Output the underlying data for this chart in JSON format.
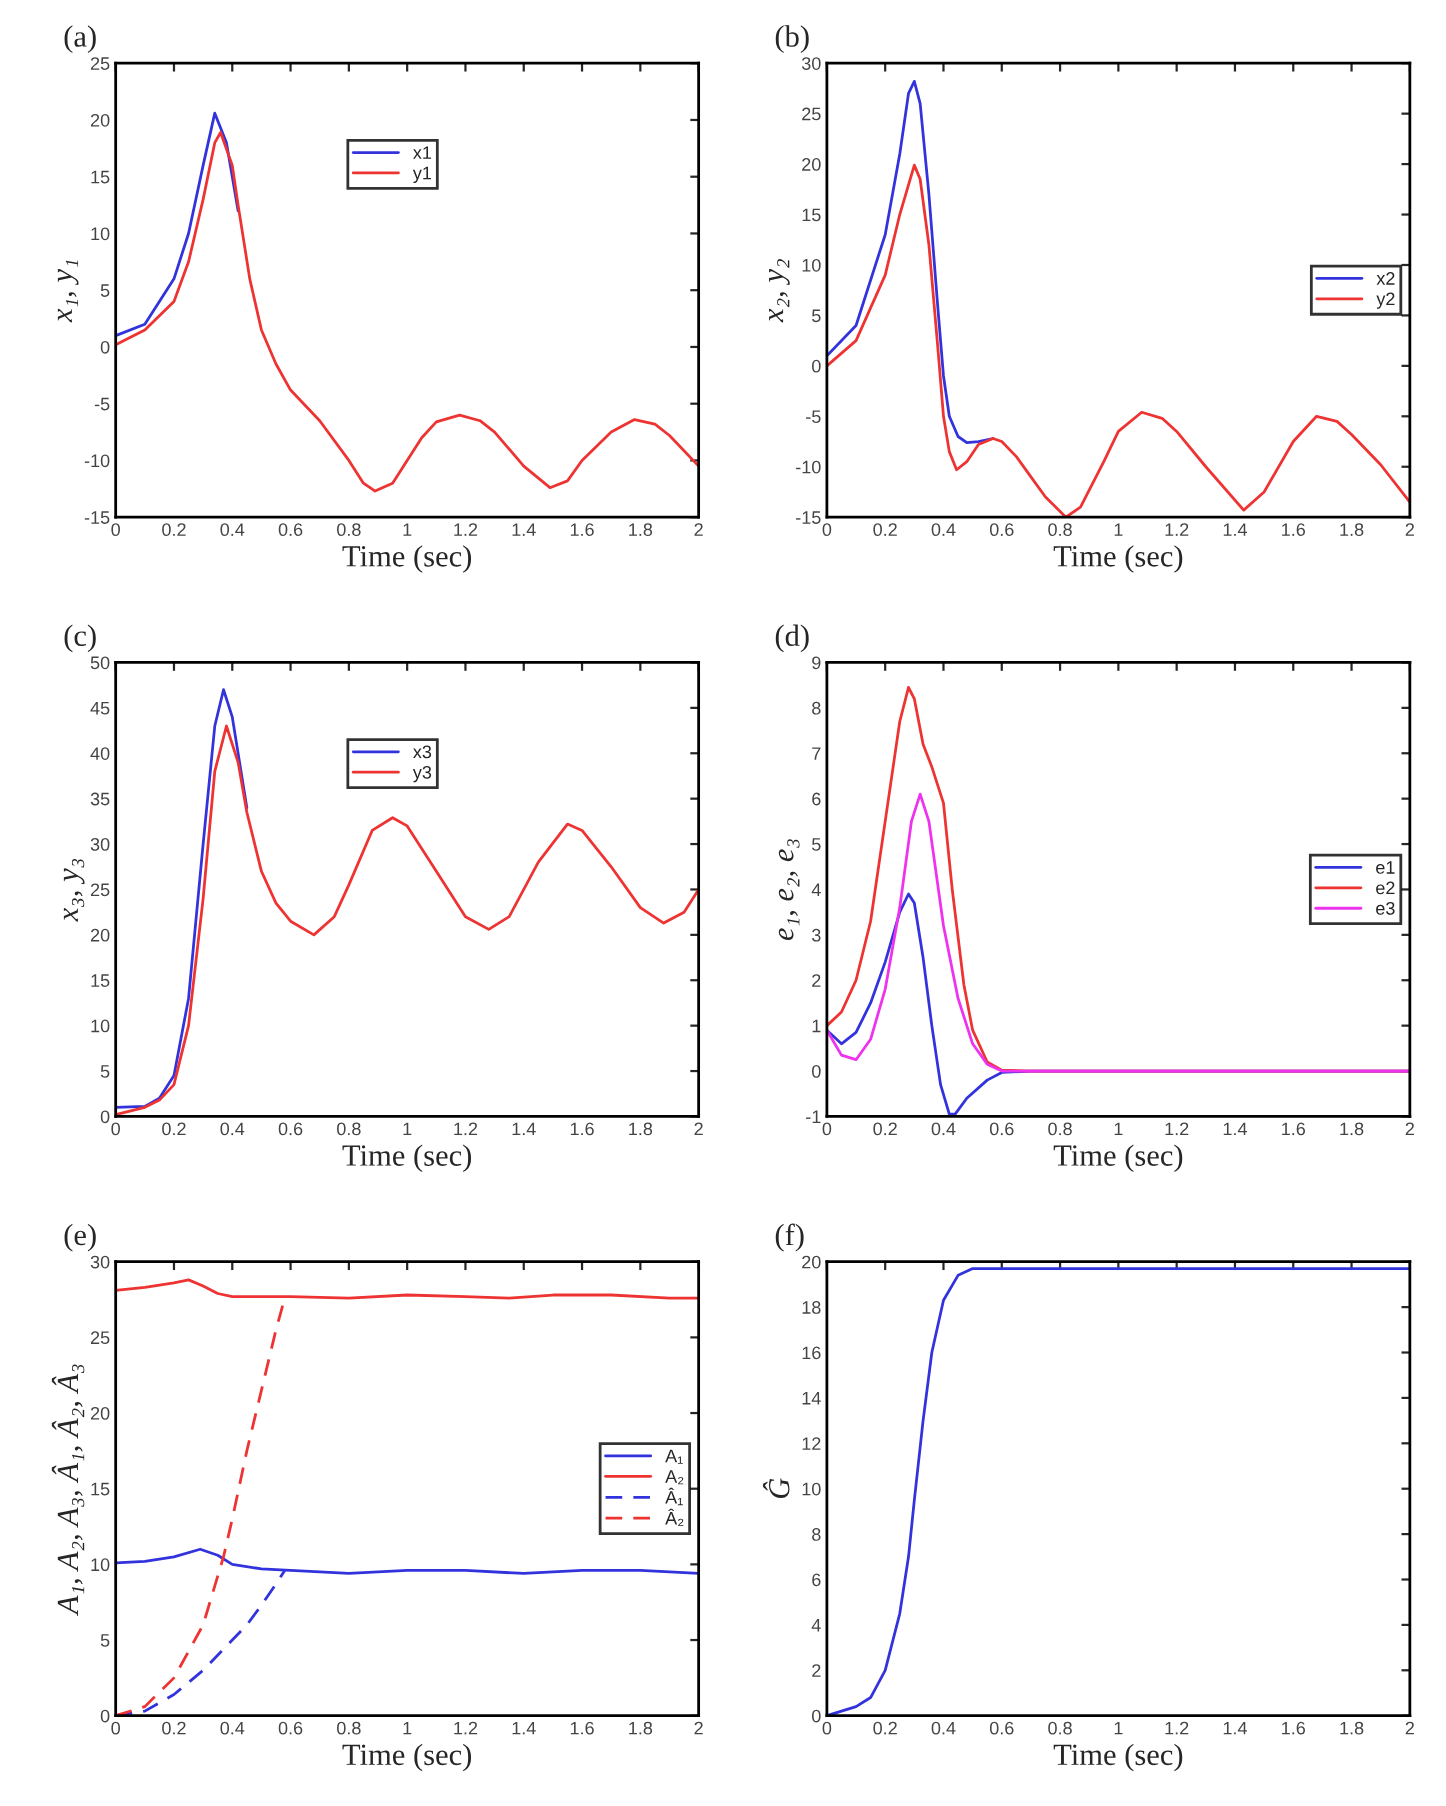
{
  "chart_data": [
    {
      "type": "line",
      "title": "(a)",
      "xlabel": "Time (sec)",
      "ylabel": "x₁, y₁",
      "xlim": [
        0,
        2
      ],
      "xticks": [
        0,
        0.2,
        0.4,
        0.6,
        0.8,
        1,
        1.2,
        1.4,
        1.6,
        1.8,
        2
      ],
      "ylim": [
        -15,
        25
      ],
      "yticks": [
        -15,
        -10,
        -5,
        0,
        5,
        10,
        15,
        20,
        25
      ],
      "legend": "top",
      "line_style": "solid",
      "series": [
        {
          "name": "x1",
          "color": "#3333dd",
          "x": [
            0,
            0.1,
            0.2,
            0.25,
            0.3,
            0.34,
            0.38,
            0.42
          ],
          "values": [
            1.0,
            2,
            6,
            10,
            16,
            20.6,
            18,
            12
          ]
        },
        {
          "name": "y1",
          "color": "#ee3333",
          "x": [
            0,
            0.1,
            0.2,
            0.25,
            0.3,
            0.34,
            0.36,
            0.4,
            0.42,
            0.46,
            0.5,
            0.55,
            0.6,
            0.7,
            0.8,
            0.85,
            0.89,
            0.95,
            1.0,
            1.05,
            1.1,
            1.18,
            1.25,
            1.3,
            1.4,
            1.49,
            1.55,
            1.6,
            1.7,
            1.78,
            1.85,
            1.9,
            2.0
          ],
          "values": [
            0.2,
            1.5,
            4,
            7.5,
            13,
            18,
            18.9,
            16,
            12.5,
            6,
            1.5,
            -1.5,
            -3.8,
            -6.5,
            -10,
            -12,
            -12.7,
            -12,
            -10,
            -8,
            -6.6,
            -6.0,
            -6.5,
            -7.5,
            -10.5,
            -12.4,
            -11.8,
            -10,
            -7.5,
            -6.4,
            -6.8,
            -7.8,
            -10.5
          ]
        }
      ]
    },
    {
      "type": "line",
      "title": "(b)",
      "xlabel": "Time (sec)",
      "ylabel": "x₂, y₂",
      "xlim": [
        0,
        2
      ],
      "xticks": [
        0,
        0.2,
        0.4,
        0.6,
        0.8,
        1,
        1.2,
        1.4,
        1.6,
        1.8,
        2
      ],
      "ylim": [
        -15,
        30
      ],
      "yticks": [
        -15,
        -10,
        -5,
        0,
        5,
        10,
        15,
        20,
        25,
        30
      ],
      "legend": "right",
      "line_style": "solid",
      "series": [
        {
          "name": "x2",
          "color": "#3333dd",
          "x": [
            0,
            0.1,
            0.2,
            0.25,
            0.28,
            0.3,
            0.32,
            0.35,
            0.38,
            0.4,
            0.42,
            0.45,
            0.48,
            0.52,
            0.57
          ],
          "values": [
            1.0,
            4,
            13,
            21,
            27,
            28.2,
            26,
            17,
            6,
            -1,
            -5,
            -7,
            -7.6,
            -7.5,
            -7.2
          ]
        },
        {
          "name": "y2",
          "color": "#ee3333",
          "x": [
            0,
            0.1,
            0.2,
            0.25,
            0.3,
            0.32,
            0.35,
            0.38,
            0.4,
            0.42,
            0.445,
            0.48,
            0.52,
            0.57,
            0.6,
            0.65,
            0.7,
            0.75,
            0.82,
            0.87,
            0.95,
            1.0,
            1.08,
            1.15,
            1.2,
            1.3,
            1.43,
            1.5,
            1.6,
            1.68,
            1.75,
            1.8,
            1.9,
            2.0
          ],
          "values": [
            0,
            2.5,
            9,
            15,
            19.9,
            18.5,
            12,
            2,
            -5,
            -8.5,
            -10.3,
            -9.5,
            -7.8,
            -7.2,
            -7.5,
            -9,
            -11,
            -13,
            -15,
            -14,
            -9.5,
            -6.5,
            -4.6,
            -5.2,
            -6.5,
            -10,
            -14.3,
            -12.5,
            -7.5,
            -5,
            -5.5,
            -6.8,
            -9.8,
            -13.5
          ]
        }
      ]
    },
    {
      "type": "line",
      "title": "(c)",
      "xlabel": "Time (sec)",
      "ylabel": "x₃, y₃",
      "xlim": [
        0,
        2
      ],
      "xticks": [
        0,
        0.2,
        0.4,
        0.6,
        0.8,
        1,
        1.2,
        1.4,
        1.6,
        1.8,
        2
      ],
      "ylim": [
        0,
        50
      ],
      "yticks": [
        0,
        5,
        10,
        15,
        20,
        25,
        30,
        35,
        40,
        45,
        50
      ],
      "legend": "top",
      "line_style": "solid",
      "series": [
        {
          "name": "x3",
          "color": "#3333dd",
          "x": [
            0,
            0.1,
            0.15,
            0.2,
            0.25,
            0.3,
            0.34,
            0.37,
            0.4,
            0.45
          ],
          "values": [
            1.0,
            1.1,
            2,
            4.5,
            13,
            30,
            43,
            47,
            44,
            34
          ]
        },
        {
          "name": "y3",
          "color": "#ee3333",
          "x": [
            0,
            0.1,
            0.15,
            0.2,
            0.25,
            0.3,
            0.34,
            0.38,
            0.42,
            0.45,
            0.5,
            0.55,
            0.6,
            0.68,
            0.75,
            0.8,
            0.88,
            0.95,
            1.0,
            1.1,
            1.2,
            1.28,
            1.35,
            1.45,
            1.55,
            1.6,
            1.7,
            1.8,
            1.88,
            1.95,
            2.0
          ],
          "values": [
            0.2,
            1,
            1.8,
            3.5,
            10,
            24,
            38,
            43,
            39,
            33.5,
            27,
            23.5,
            21.5,
            20,
            22,
            25.5,
            31.5,
            32.9,
            32,
            27,
            22,
            20.6,
            22,
            28,
            32.2,
            31.5,
            27.5,
            23,
            21.3,
            22.5,
            25
          ]
        }
      ]
    },
    {
      "type": "line",
      "title": "(d)",
      "xlabel": "Time (sec)",
      "ylabel": "e₁, e₂, e₃",
      "xlim": [
        0,
        2
      ],
      "xticks": [
        0,
        0.2,
        0.4,
        0.6,
        0.8,
        1,
        1.2,
        1.4,
        1.6,
        1.8,
        2
      ],
      "ylim": [
        -1,
        9
      ],
      "yticks": [
        -1,
        0,
        1,
        2,
        3,
        4,
        5,
        6,
        7,
        8,
        9
      ],
      "legend": "right",
      "line_style": "solid",
      "series": [
        {
          "name": "e1",
          "color": "#3333dd",
          "x": [
            0,
            0.05,
            0.1,
            0.15,
            0.2,
            0.25,
            0.28,
            0.3,
            0.33,
            0.36,
            0.39,
            0.42,
            0.44,
            0.48,
            0.55,
            0.6,
            0.7,
            2.0
          ],
          "values": [
            0.9,
            0.6,
            0.85,
            1.5,
            2.4,
            3.5,
            3.9,
            3.7,
            2.5,
            1.0,
            -0.3,
            -0.95,
            -0.95,
            -0.6,
            -0.2,
            -0.03,
            0,
            0
          ]
        },
        {
          "name": "e2",
          "color": "#ee3333",
          "x": [
            0,
            0.05,
            0.1,
            0.15,
            0.2,
            0.25,
            0.28,
            0.3,
            0.33,
            0.36,
            0.4,
            0.43,
            0.47,
            0.5,
            0.55,
            0.6,
            0.7,
            2.0
          ],
          "values": [
            1.0,
            1.3,
            2.0,
            3.3,
            5.5,
            7.7,
            8.45,
            8.2,
            7.2,
            6.7,
            5.9,
            4.0,
            1.9,
            0.9,
            0.2,
            0.02,
            0,
            0
          ]
        },
        {
          "name": "e3",
          "color": "#ee33ee",
          "x": [
            0,
            0.05,
            0.1,
            0.15,
            0.2,
            0.25,
            0.29,
            0.32,
            0.35,
            0.4,
            0.45,
            0.5,
            0.55,
            0.6,
            2.0
          ],
          "values": [
            0.9,
            0.35,
            0.25,
            0.7,
            1.8,
            3.6,
            5.5,
            6.1,
            5.5,
            3.2,
            1.6,
            0.6,
            0.15,
            0,
            0
          ]
        }
      ]
    },
    {
      "type": "line",
      "title": "(e)",
      "xlabel": "Time (sec)",
      "ylabel": "A₁, A₂, A₃, Â₁, Â₂, Â₃",
      "xlim": [
        0,
        2
      ],
      "xticks": [
        0,
        0.2,
        0.4,
        0.6,
        0.8,
        1,
        1.2,
        1.4,
        1.6,
        1.8,
        2
      ],
      "ylim": [
        0,
        30
      ],
      "yticks": [
        0,
        5,
        10,
        15,
        20,
        25,
        30
      ],
      "legend": "right",
      "series": [
        {
          "name": "A₁",
          "color": "#3333dd",
          "line_style": "solid",
          "x": [
            0,
            0.1,
            0.2,
            0.29,
            0.35,
            0.4,
            0.5,
            0.6,
            0.8,
            1.0,
            1.2,
            1.4,
            1.6,
            1.8,
            2.0
          ],
          "values": [
            10.1,
            10.2,
            10.5,
            11.0,
            10.6,
            10.0,
            9.7,
            9.6,
            9.4,
            9.6,
            9.6,
            9.4,
            9.6,
            9.6,
            9.4
          ]
        },
        {
          "name": "A₂",
          "color": "#ee3333",
          "line_style": "solid",
          "x": [
            0,
            0.1,
            0.2,
            0.25,
            0.3,
            0.35,
            0.4,
            0.6,
            0.8,
            1.0,
            1.2,
            1.35,
            1.5,
            1.7,
            1.9,
            2.0
          ],
          "values": [
            28.1,
            28.3,
            28.6,
            28.8,
            28.4,
            27.9,
            27.7,
            27.7,
            27.6,
            27.8,
            27.7,
            27.6,
            27.8,
            27.8,
            27.6,
            27.6
          ]
        },
        {
          "name": "Â₁",
          "color": "#3333dd",
          "line_style": "dashed",
          "x": [
            0,
            0.1,
            0.2,
            0.3,
            0.4,
            0.45,
            0.5,
            0.55,
            0.58
          ],
          "values": [
            0,
            0.3,
            1.4,
            3,
            5,
            6,
            7.3,
            8.7,
            9.6
          ]
        },
        {
          "name": "Â₂",
          "color": "#ee3333",
          "line_style": "dashed",
          "x": [
            0,
            0.1,
            0.2,
            0.3,
            0.37,
            0.4,
            0.45,
            0.5,
            0.55,
            0.58
          ],
          "values": [
            0,
            0.6,
            2.5,
            6,
            10.5,
            13,
            17.5,
            21.5,
            25.5,
            27.6
          ]
        }
      ]
    },
    {
      "type": "line",
      "title": "(f)",
      "xlabel": "Time (sec)",
      "ylabel": "Ĝ",
      "xlim": [
        0,
        2
      ],
      "xticks": [
        0,
        0.2,
        0.4,
        0.6,
        0.8,
        1,
        1.2,
        1.4,
        1.6,
        1.8,
        2
      ],
      "ylim": [
        0,
        20
      ],
      "yticks": [
        0,
        2,
        4,
        6,
        8,
        10,
        12,
        14,
        16,
        18,
        20
      ],
      "line_style": "solid",
      "series": [
        {
          "color": "#3333dd",
          "x": [
            0,
            0.05,
            0.1,
            0.15,
            0.2,
            0.25,
            0.28,
            0.3,
            0.33,
            0.36,
            0.4,
            0.45,
            0.5,
            2.0
          ],
          "values": [
            0,
            0.2,
            0.4,
            0.8,
            2,
            4.5,
            7,
            9.5,
            13,
            16,
            18.3,
            19.4,
            19.7,
            19.7
          ]
        }
      ]
    }
  ]
}
